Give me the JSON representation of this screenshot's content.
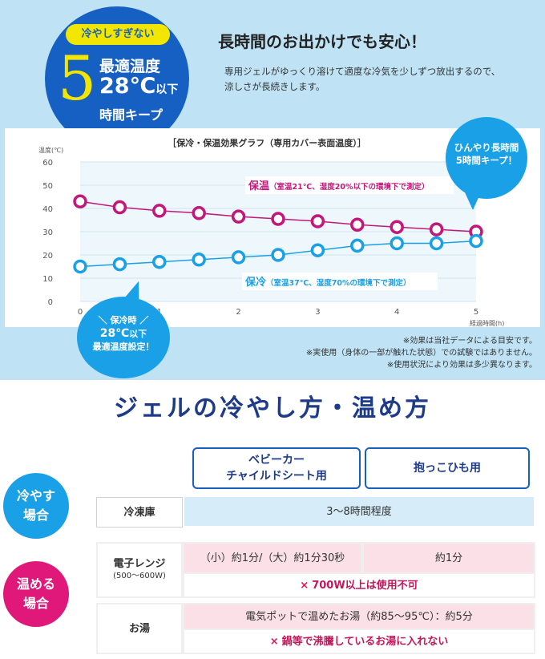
{
  "badge": {
    "pill": "冷やしすぎない",
    "number": "5",
    "line1": "最適温度",
    "line2_main": "28℃",
    "line2_small": "以下",
    "line3": "時間キープ"
  },
  "headline": "長時間のお出かけでも安心！",
  "description": [
    "専用ジェルがゆっくり溶けて適度な冷気を少しずつ放出するので、",
    "涼しさが長続きします。"
  ],
  "chart_data": {
    "type": "line",
    "title": "［保冷・保温効果グラフ（専用カバー表面温度）］",
    "ylabel": "温度(℃)",
    "xlabel": "経過時間(h)",
    "xlim": [
      0,
      5
    ],
    "ylim": [
      0,
      60
    ],
    "x_ticks": [
      "0",
      "1",
      "2",
      "3",
      "4",
      "5"
    ],
    "y_ticks": [
      "0",
      "10",
      "20",
      "30",
      "40",
      "50",
      "60"
    ],
    "x": [
      0,
      0.5,
      1,
      1.5,
      2,
      2.5,
      3,
      3.5,
      4,
      4.5,
      5
    ],
    "series": [
      {
        "name": "保温",
        "condition": "（室温21℃、湿度20%以下の環境下で測定）",
        "color": "#c2187a",
        "values": [
          43,
          40.5,
          39,
          38,
          36.5,
          35.5,
          34.5,
          33,
          32,
          31,
          30
        ]
      },
      {
        "name": "保冷",
        "condition": "（室温37℃、湿度70%の環境下で測定）",
        "color": "#1aa0e6",
        "values": [
          15,
          16,
          17,
          18,
          19,
          20,
          22,
          24,
          25,
          25,
          26
        ]
      }
    ],
    "grid": true
  },
  "bubble_right": [
    "ひんやり長時間",
    "5時間キープ！"
  ],
  "bubble_left": {
    "line1": "＼ 保冷時 ／",
    "line2_main": "28℃",
    "line2_small": "以下",
    "line3": "最適温度設定！"
  },
  "notes": [
    "※効果は当社データによる目安です。",
    "※実使用（身体の一部が触れた状態）での試験ではありません。",
    "※使用状況により効果は多少異なります。"
  ],
  "section_title": "ジェルの冷やし方・温め方",
  "table": {
    "col1": [
      "ベビーカー",
      "チャイルドシート用"
    ],
    "col2": "抱っこひも用",
    "cool_label": [
      "冷やす",
      "場合"
    ],
    "warm_label": [
      "温める",
      "場合"
    ],
    "freezer_label": "冷凍庫",
    "freezer_value": "3～8時間程度",
    "microwave_label": "電子レンジ",
    "microwave_sub": "(500～600W)",
    "microwave_col1": "（小）約1分/（大）約1分30秒",
    "microwave_col2": "約1分",
    "microwave_warning": "700W以上は使用不可",
    "hotwater_label": "お湯",
    "hotwater_value": "電気ポットで温めたお湯（約85～95℃）：約5分",
    "hotwater_warning": "鍋等で沸騰しているお湯に入れない",
    "warn_icon": "×",
    "cool_color": "#1aa0e6",
    "warm_color": "#e0187a"
  }
}
